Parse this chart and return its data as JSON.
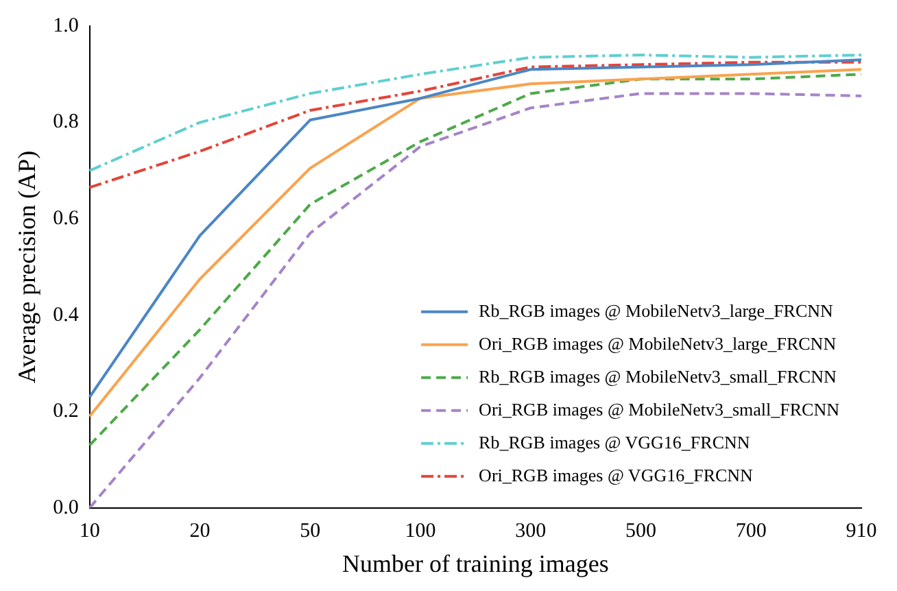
{
  "chart_data": {
    "type": "line",
    "xlabel": "Number of training images",
    "ylabel": "Average precision (AP)",
    "categories": [
      "10",
      "20",
      "50",
      "100",
      "300",
      "500",
      "700",
      "910"
    ],
    "ylim": [
      0.0,
      1.0
    ],
    "yticks": [
      {
        "value": 0,
        "label": "0.0"
      },
      0.2,
      0.4,
      0.6,
      0.8,
      {
        "value": 1,
        "label": "1.0"
      }
    ],
    "grid": false,
    "legend": "bottom right",
    "marker": "none",
    "series": [
      {
        "name": "Rb_RGB images @ MobileNetv3_large_FRCNN",
        "color": "#4a86c5",
        "line_style": "solid",
        "values": [
          0.23,
          0.565,
          0.805,
          0.85,
          0.91,
          0.915,
          0.92,
          0.93
        ]
      },
      {
        "name": "Ori_RGB images @ MobileNetv3_large_FRCNN",
        "color": "#f9a34e",
        "line_style": "solid",
        "values": [
          0.19,
          0.475,
          0.705,
          0.85,
          0.88,
          0.89,
          0.9,
          0.91
        ]
      },
      {
        "name": "Rb_RGB images @ MobileNetv3_small_FRCNN",
        "color": "#4daa48",
        "line_style": "dashed",
        "values": [
          0.13,
          0.37,
          0.63,
          0.76,
          0.86,
          0.89,
          0.89,
          0.9
        ]
      },
      {
        "name": "Ori_RGB images @ MobileNetv3_small_FRCNN",
        "color": "#a584c8",
        "line_style": "dashed",
        "values": [
          0.0,
          0.27,
          0.57,
          0.75,
          0.83,
          0.86,
          0.86,
          0.855
        ]
      },
      {
        "name": "Rb_RGB images @ VGG16_FRCNN",
        "color": "#5fcfd0",
        "line_style": "dashdot",
        "values": [
          0.7,
          0.8,
          0.86,
          0.9,
          0.935,
          0.94,
          0.935,
          0.94
        ]
      },
      {
        "name": "Ori_RGB images @ VGG16_FRCNN",
        "color": "#e2453a",
        "line_style": "dashdot",
        "values": [
          0.665,
          0.74,
          0.825,
          0.865,
          0.915,
          0.92,
          0.925,
          0.925
        ]
      }
    ]
  }
}
